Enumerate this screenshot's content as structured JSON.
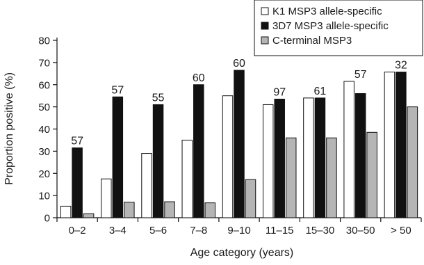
{
  "chart_data": {
    "type": "bar",
    "title": "",
    "xlabel": "Age category (years)",
    "ylabel": "Proportion positive (%)",
    "ylim": [
      0,
      80
    ],
    "yticks": [
      0,
      10,
      20,
      30,
      40,
      50,
      60,
      70,
      80
    ],
    "grid": false,
    "legend_position": "top-right",
    "categories": [
      "0–2",
      "3–4",
      "5–6",
      "7–8",
      "9–10",
      "11–15",
      "15–30",
      "30–50",
      "> 50"
    ],
    "series": [
      {
        "name": "K1 MSP3 allele-specific",
        "color": "#ffffff",
        "values": [
          5.2,
          17.5,
          29.0,
          35.0,
          55.0,
          51.0,
          54.0,
          61.5,
          65.7
        ]
      },
      {
        "name": "3D7 MSP3 allele-specific",
        "color": "#111111",
        "values": [
          31.5,
          54.5,
          51.0,
          60.0,
          66.5,
          53.5,
          54.0,
          56.0,
          65.7
        ]
      },
      {
        "name": "C-terminal MSP3",
        "color": "#b5b5b5",
        "values": [
          1.8,
          7.0,
          7.2,
          6.7,
          17.2,
          36.0,
          36.0,
          38.5,
          50.0
        ]
      }
    ],
    "annotations": [
      "57",
      "57",
      "55",
      "60",
      "60",
      "97",
      "61",
      "57",
      "32"
    ]
  }
}
